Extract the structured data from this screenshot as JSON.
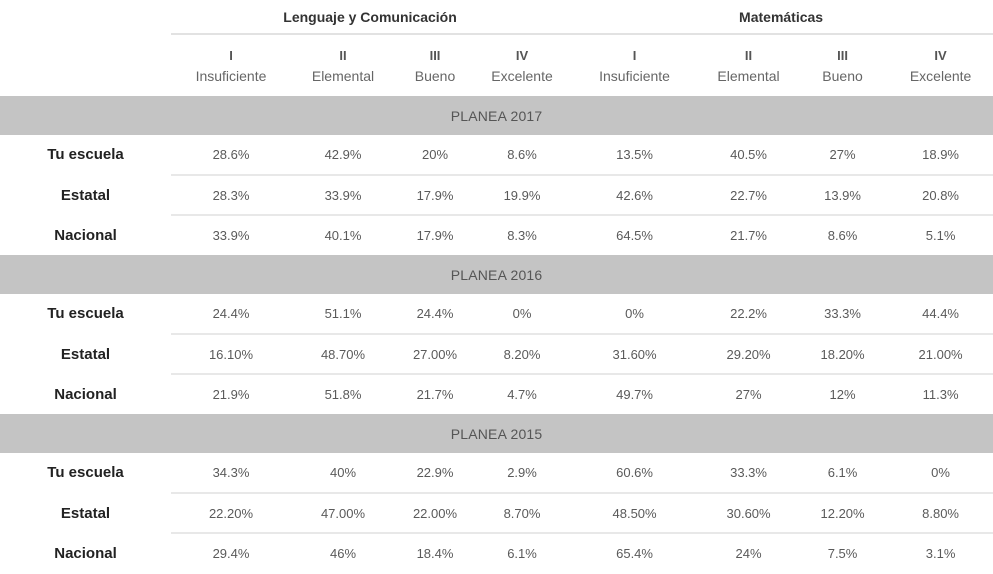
{
  "headers": {
    "subject_left": "Lenguaje y Comunicación",
    "subject_right": "Matemáticas",
    "levels": [
      {
        "roman": "I",
        "name": "Insuficiente"
      },
      {
        "roman": "II",
        "name": "Elemental"
      },
      {
        "roman": "III",
        "name": "Bueno"
      },
      {
        "roman": "IV",
        "name": "Excelente"
      },
      {
        "roman": "I",
        "name": "Insuficiente"
      },
      {
        "roman": "II",
        "name": "Elemental"
      },
      {
        "roman": "III",
        "name": "Bueno"
      },
      {
        "roman": "IV",
        "name": "Excelente"
      }
    ]
  },
  "sections": [
    {
      "title": "PLANEA 2017",
      "rows": [
        {
          "label": "Tu escuela",
          "values": [
            "28.6%",
            "42.9%",
            "20%",
            "8.6%",
            "13.5%",
            "40.5%",
            "27%",
            "18.9%"
          ]
        },
        {
          "label": "Estatal",
          "values": [
            "28.3%",
            "33.9%",
            "17.9%",
            "19.9%",
            "42.6%",
            "22.7%",
            "13.9%",
            "20.8%"
          ]
        },
        {
          "label": "Nacional",
          "values": [
            "33.9%",
            "40.1%",
            "17.9%",
            "8.3%",
            "64.5%",
            "21.7%",
            "8.6%",
            "5.1%"
          ]
        }
      ]
    },
    {
      "title": "PLANEA 2016",
      "rows": [
        {
          "label": "Tu escuela",
          "values": [
            "24.4%",
            "51.1%",
            "24.4%",
            "0%",
            "0%",
            "22.2%",
            "33.3%",
            "44.4%"
          ]
        },
        {
          "label": "Estatal",
          "values": [
            "16.10%",
            "48.70%",
            "27.00%",
            "8.20%",
            "31.60%",
            "29.20%",
            "18.20%",
            "21.00%"
          ]
        },
        {
          "label": "Nacional",
          "values": [
            "21.9%",
            "51.8%",
            "21.7%",
            "4.7%",
            "49.7%",
            "27%",
            "12%",
            "11.3%"
          ]
        }
      ]
    },
    {
      "title": "PLANEA 2015",
      "rows": [
        {
          "label": "Tu escuela",
          "values": [
            "34.3%",
            "40%",
            "22.9%",
            "2.9%",
            "60.6%",
            "33.3%",
            "6.1%",
            "0%"
          ]
        },
        {
          "label": "Estatal",
          "values": [
            "22.20%",
            "47.00%",
            "22.00%",
            "8.70%",
            "48.50%",
            "30.60%",
            "12.20%",
            "8.80%"
          ]
        },
        {
          "label": "Nacional",
          "values": [
            "29.4%",
            "46%",
            "18.4%",
            "6.1%",
            "65.4%",
            "24%",
            "7.5%",
            "3.1%"
          ]
        }
      ]
    }
  ]
}
